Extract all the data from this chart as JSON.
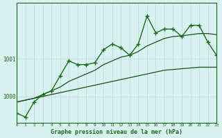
{
  "title": "Graphe pression niveau de la mer (hPa)",
  "bg_color": "#d8f0f0",
  "grid_color": "#b8dada",
  "line_color": "#1a6b1a",
  "dark_line_color": "#145214",
  "xlim": [
    0,
    23
  ],
  "ylim": [
    999.3,
    1002.5
  ],
  "yticks": [
    1000,
    1001
  ],
  "xticks": [
    0,
    1,
    2,
    3,
    4,
    5,
    6,
    7,
    8,
    9,
    10,
    11,
    12,
    13,
    14,
    15,
    16,
    17,
    18,
    19,
    20,
    21,
    22,
    23
  ],
  "hours": [
    0,
    1,
    2,
    3,
    4,
    5,
    6,
    7,
    8,
    9,
    10,
    11,
    12,
    13,
    14,
    15,
    16,
    17,
    18,
    19,
    20,
    21,
    22,
    23
  ],
  "pressure_main": [
    999.55,
    999.45,
    999.85,
    1000.05,
    1000.15,
    1000.55,
    1000.95,
    1000.85,
    1000.85,
    1000.9,
    1001.25,
    1001.4,
    1001.3,
    1001.1,
    1001.4,
    1002.15,
    1001.7,
    1001.8,
    1001.8,
    1001.6,
    1001.9,
    1001.9,
    1001.45,
    1001.1
  ],
  "trend_low": [
    999.85,
    999.9,
    999.95,
    1000.0,
    1000.05,
    1000.1,
    1000.15,
    1000.2,
    1000.25,
    1000.3,
    1000.35,
    1000.4,
    1000.45,
    1000.5,
    1000.55,
    1000.6,
    1000.65,
    1000.7,
    1000.72,
    1000.74,
    1000.76,
    1000.78,
    1000.78,
    1000.78
  ],
  "trend_high": [
    999.85,
    999.9,
    999.95,
    1000.05,
    1000.15,
    1000.25,
    1000.4,
    1000.5,
    1000.6,
    1000.7,
    1000.85,
    1000.95,
    1001.05,
    1001.1,
    1001.2,
    1001.35,
    1001.45,
    1001.55,
    1001.6,
    1001.62,
    1001.65,
    1001.68,
    1001.68,
    1001.65
  ]
}
